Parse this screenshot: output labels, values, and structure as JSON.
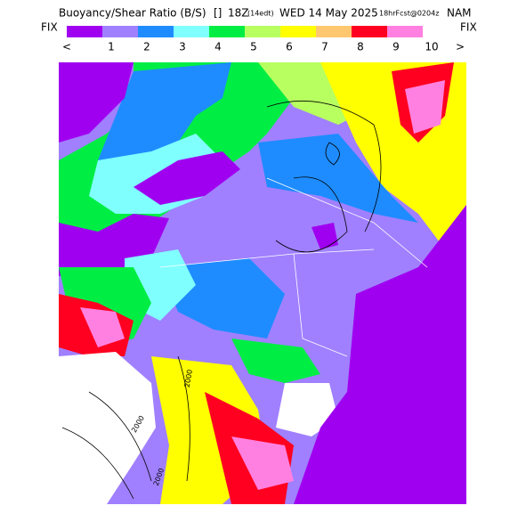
{
  "header": {
    "title": "Buoyancy/Shear Ratio (B/S)",
    "marker": "[]",
    "valid": "18Z",
    "local": "(14edt)",
    "date": "WED 14 May 2025",
    "forecast": "18hrFcst@0204z",
    "model": "NAM"
  },
  "colorbar": {
    "left_label": "FIX",
    "right_label": "FIX",
    "less": "<",
    "more": ">",
    "colors": [
      "#a000f0",
      "#a080ff",
      "#1e8cff",
      "#80ffff",
      "#00ee44",
      "#b8ff60",
      "#ffff00",
      "#ffc870",
      "#ff0020",
      "#ff80e0"
    ],
    "labels": [
      1,
      2,
      3,
      4,
      5,
      6,
      7,
      8,
      9,
      10
    ]
  },
  "map": {
    "contour_labels": [
      "2000",
      "2000",
      "2000"
    ]
  }
}
